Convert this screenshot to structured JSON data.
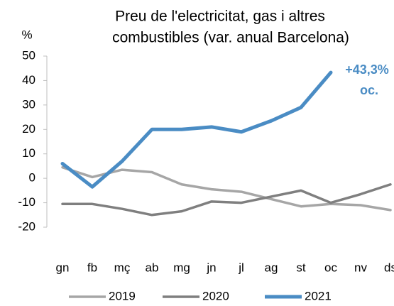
{
  "chart_data": {
    "type": "line",
    "title": [
      "Preu de l'electricitat, gas i altres",
      "combustibles (var. anual Barcelona)"
    ],
    "y_label": "%",
    "categories": [
      "gn",
      "fb",
      "mç",
      "ab",
      "mg",
      "jn",
      "jl",
      "ag",
      "st",
      "oc",
      "nv",
      "ds"
    ],
    "series": [
      {
        "name": "2019",
        "color": "#a6a6a6",
        "values": [
          4.5,
          0.5,
          3.5,
          2.5,
          -2.5,
          -4.5,
          -5.5,
          -8.5,
          -11.5,
          -10.5,
          -11,
          -13
        ]
      },
      {
        "name": "2020",
        "color": "#7f7f7f",
        "values": [
          -10.5,
          -10.5,
          -12.5,
          -15,
          -13.5,
          -9.5,
          -10,
          -7.5,
          -5,
          -10,
          -6.5,
          -2.5
        ]
      },
      {
        "name": "2021",
        "color": "#4a8cc4",
        "values": [
          6,
          -3.5,
          7,
          20,
          20,
          21,
          19,
          23.5,
          29,
          43.3,
          null,
          null
        ]
      }
    ],
    "annotations": [
      "+43,3%",
      "oc."
    ],
    "ylim": [
      -20,
      50
    ],
    "yticks": [
      -20,
      -10,
      0,
      10,
      20,
      30,
      40,
      50
    ],
    "grid": false,
    "legend": "bottom"
  }
}
